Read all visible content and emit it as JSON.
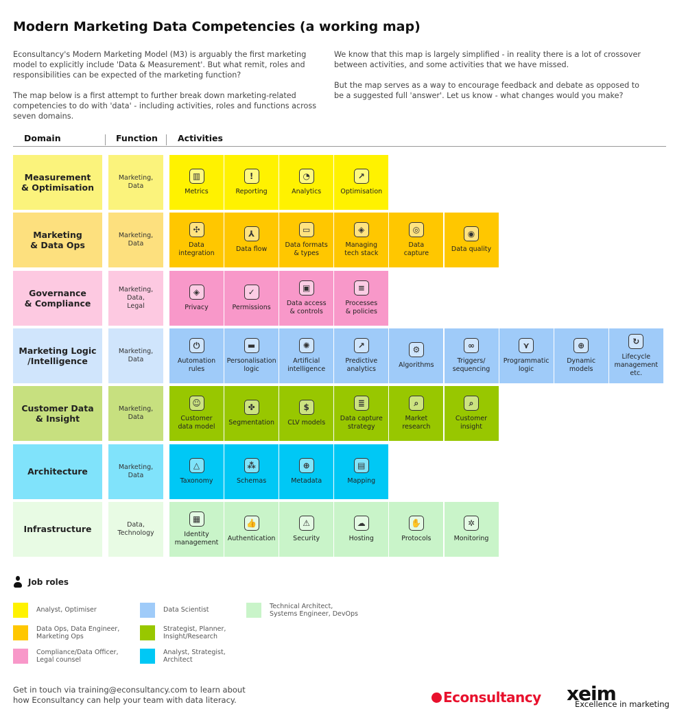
{
  "title": "Modern Marketing Data Competencies (a working map)",
  "intro_left": [
    "Econsultancy's Modern Marketing Model (M3) is arguably the first marketing model to explicitly include 'Data & Measurement'. But what remit, roles and responsibilities can be expected of the marketing function?",
    "The map below is a first attempt to further break down marketing-related competencies to do with 'data' - including activities, roles and functions across seven domains."
  ],
  "intro_right": [
    "We know that this map is largely simplified - in reality there is a lot of crossover between activities, and some activities that we have missed.",
    "But the map serves as a way to encourage feedback and debate as opposed to be a suggested full 'answer'. Let us know - what changes would you make?"
  ],
  "headers": {
    "domain": "Domain",
    "function": "Function",
    "activities": "Activities"
  },
  "rows": [
    {
      "domain": "Measurement\n& Optimisation",
      "function": "Marketing,\nData",
      "domain_color": "#fbf37c",
      "activity_color": "#fff200",
      "activities": [
        {
          "label": "Metrics",
          "icon": "bar-chart-icon"
        },
        {
          "label": "Reporting",
          "icon": "alert-icon"
        },
        {
          "label": "Analytics",
          "icon": "pie-chart-icon"
        },
        {
          "label": "Optimisation",
          "icon": "trend-up-icon"
        }
      ]
    },
    {
      "domain": "Marketing\n& Data Ops",
      "function": "Marketing,\nData",
      "domain_color": "#fde07e",
      "activity_color": "#ffc700",
      "activities": [
        {
          "label": "Data\nintegration",
          "icon": "arrows-converge-icon"
        },
        {
          "label": "Data flow",
          "icon": "flow-icon"
        },
        {
          "label": "Data formats\n& types",
          "icon": "folder-icon"
        },
        {
          "label": "Managing\ntech stack",
          "icon": "layers-icon"
        },
        {
          "label": "Data\ncapture",
          "icon": "fingerprint-icon"
        },
        {
          "label": "Data quality",
          "icon": "eye-icon"
        }
      ]
    },
    {
      "domain": "Governance\n& Compliance",
      "function": "Marketing,\nData,\nLegal",
      "domain_color": "#fdc9e1",
      "activity_color": "#f898c9",
      "activities": [
        {
          "label": "Privacy",
          "icon": "shield-icon"
        },
        {
          "label": "Permissions",
          "icon": "checkbox-icon"
        },
        {
          "label": "Data access\n& controls",
          "icon": "lock-icon"
        },
        {
          "label": "Processes\n& policies",
          "icon": "document-icon"
        }
      ]
    },
    {
      "domain": "Marketing Logic\n/Intelligence",
      "function": "Marketing,\nData",
      "domain_color": "#d0e5fc",
      "activity_color": "#9fcbf9",
      "activities": [
        {
          "label": "Automation\nrules",
          "icon": "power-icon"
        },
        {
          "label": "Personalisation\nlogic",
          "icon": "paint-roller-icon"
        },
        {
          "label": "Artificial\nintelligence",
          "icon": "brain-icon"
        },
        {
          "label": "Predictive\nanalytics",
          "icon": "arrow-up-right-icon"
        },
        {
          "label": "Algorithms",
          "icon": "gear-icon"
        },
        {
          "label": "Triggers/\nsequencing",
          "icon": "nodes-icon"
        },
        {
          "label": "Programmatic\nlogic",
          "icon": "merge-icon"
        },
        {
          "label": "Dynamic\nmodels",
          "icon": "target-icon"
        },
        {
          "label": "Lifecycle\nmanagement\netc.",
          "icon": "cycle-icon"
        }
      ]
    },
    {
      "domain": "Customer Data\n& Insight",
      "function": "Marketing,\nData",
      "domain_color": "#c7e07f",
      "activity_color": "#98c700",
      "activities": [
        {
          "label": "Customer\ndata model",
          "icon": "user-circle-icon"
        },
        {
          "label": "Segmentation",
          "icon": "puzzle-icon"
        },
        {
          "label": "CLV models",
          "icon": "dollar-icon"
        },
        {
          "label": "Data capture\nstrategy",
          "icon": "clipboard-icon"
        },
        {
          "label": "Market\nresearch",
          "icon": "search-document-icon"
        },
        {
          "label": "Customer\ninsight",
          "icon": "search-icon"
        }
      ]
    },
    {
      "domain": "Architecture",
      "function": "Marketing,\nData",
      "domain_color": "#80e3fb",
      "activity_color": "#00c8f5",
      "activities": [
        {
          "label": "Taxonomy",
          "icon": "pyramid-icon"
        },
        {
          "label": "Schemas",
          "icon": "schema-icon"
        },
        {
          "label": "Metadata",
          "icon": "magnifier-icon"
        },
        {
          "label": "Mapping",
          "icon": "map-icon"
        }
      ]
    },
    {
      "domain": "Infrastructure",
      "function": "Data,\nTechnology",
      "domain_color": "#e8fbe4",
      "activity_color": "#c9f4c9",
      "activities": [
        {
          "label": "Identity\nmanagement",
          "icon": "id-card-icon"
        },
        {
          "label": "Authentication",
          "icon": "thumbs-up-icon"
        },
        {
          "label": "Security",
          "icon": "warning-icon"
        },
        {
          "label": "Hosting",
          "icon": "cloud-icon"
        },
        {
          "label": "Protocols",
          "icon": "hand-icon"
        },
        {
          "label": "Monitoring",
          "icon": "aperture-icon"
        }
      ]
    }
  ],
  "job_roles": {
    "title": "Job roles",
    "items": [
      {
        "label": "Analyst, Optimiser",
        "color": "#fff200"
      },
      {
        "label": "Data Ops, Data Engineer,\nMarketing Ops",
        "color": "#ffc700"
      },
      {
        "label": "Compliance/Data Officer,\nLegal counsel",
        "color": "#f898c9"
      },
      {
        "label": "Data Scientist",
        "color": "#9fcbf9"
      },
      {
        "label": "Strategist, Planner,\nInsight/Research",
        "color": "#98c700"
      },
      {
        "label": "Analyst, Strategist,\nArchitect",
        "color": "#00c8f5"
      },
      {
        "label": "Technical Architect,\nSystems Engineer, DevOps",
        "color": "#c9f4c9"
      }
    ]
  },
  "footer": "Get in touch via training@econsultancy.com to learn about how Econsultancy can help your team with data literacy.",
  "logos": {
    "econsultancy": "Econsultancy",
    "xeim": "xeim",
    "xeim_tagline": "Excellence in marketing"
  }
}
